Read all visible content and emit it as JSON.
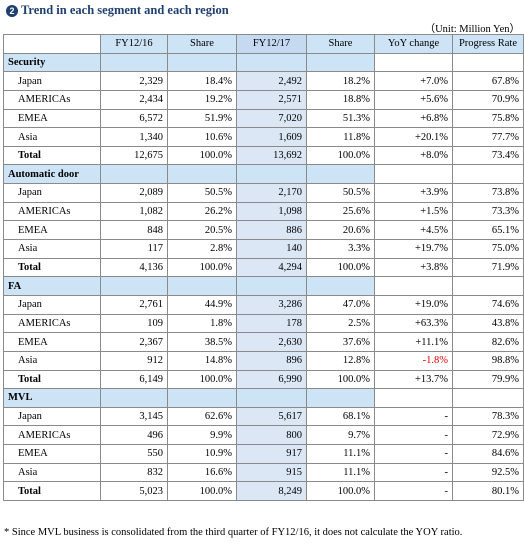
{
  "title": "Trend in each segment and each region",
  "title_number": "2",
  "unit_note": "（Unit: Million Yen）",
  "columns": [
    "",
    "FY12/16",
    "Share",
    "FY12/17",
    "Share",
    "YoY change",
    "Progress Rate"
  ],
  "segments": [
    {
      "name": "Security",
      "rows": [
        {
          "region": "Japan",
          "fy16": "2,329",
          "share16": "18.4%",
          "fy17": "2,492",
          "share17": "18.2%",
          "yoy": "+7.0%",
          "progress": "67.8%"
        },
        {
          "region": "AMERICAs",
          "fy16": "2,434",
          "share16": "19.2%",
          "fy17": "2,571",
          "share17": "18.8%",
          "yoy": "+5.6%",
          "progress": "70.9%"
        },
        {
          "region": "EMEA",
          "fy16": "6,572",
          "share16": "51.9%",
          "fy17": "7,020",
          "share17": "51.3%",
          "yoy": "+6.8%",
          "progress": "75.8%"
        },
        {
          "region": "Asia",
          "fy16": "1,340",
          "share16": "10.6%",
          "fy17": "1,609",
          "share17": "11.8%",
          "yoy": "+20.1%",
          "progress": "77.7%"
        }
      ],
      "total": {
        "region": "Total",
        "fy16": "12,675",
        "share16": "100.0%",
        "fy17": "13,692",
        "share17": "100.0%",
        "yoy": "+8.0%",
        "progress": "73.4%"
      }
    },
    {
      "name": "Automatic door",
      "rows": [
        {
          "region": "Japan",
          "fy16": "2,089",
          "share16": "50.5%",
          "fy17": "2,170",
          "share17": "50.5%",
          "yoy": "+3.9%",
          "progress": "73.8%"
        },
        {
          "region": "AMERICAs",
          "fy16": "1,082",
          "share16": "26.2%",
          "fy17": "1,098",
          "share17": "25.6%",
          "yoy": "+1.5%",
          "progress": "73.3%"
        },
        {
          "region": "EMEA",
          "fy16": "848",
          "share16": "20.5%",
          "fy17": "886",
          "share17": "20.6%",
          "yoy": "+4.5%",
          "progress": "65.1%"
        },
        {
          "region": "Asia",
          "fy16": "117",
          "share16": "2.8%",
          "fy17": "140",
          "share17": "3.3%",
          "yoy": "+19.7%",
          "progress": "75.0%"
        }
      ],
      "total": {
        "region": "Total",
        "fy16": "4,136",
        "share16": "100.0%",
        "fy17": "4,294",
        "share17": "100.0%",
        "yoy": "+3.8%",
        "progress": "71.9%"
      }
    },
    {
      "name": "FA",
      "rows": [
        {
          "region": "Japan",
          "fy16": "2,761",
          "share16": "44.9%",
          "fy17": "3,286",
          "share17": "47.0%",
          "yoy": "+19.0%",
          "progress": "74.6%"
        },
        {
          "region": "AMERICAs",
          "fy16": "109",
          "share16": "1.8%",
          "fy17": "178",
          "share17": "2.5%",
          "yoy": "+63.3%",
          "progress": "43.8%"
        },
        {
          "region": "EMEA",
          "fy16": "2,367",
          "share16": "38.5%",
          "fy17": "2,630",
          "share17": "37.6%",
          "yoy": "+11.1%",
          "progress": "82.6%"
        },
        {
          "region": "Asia",
          "fy16": "912",
          "share16": "14.8%",
          "fy17": "896",
          "share17": "12.8%",
          "yoy": "-1.8%",
          "progress": "98.8%",
          "negative": true
        }
      ],
      "total": {
        "region": "Total",
        "fy16": "6,149",
        "share16": "100.0%",
        "fy17": "6,990",
        "share17": "100.0%",
        "yoy": "+13.7%",
        "progress": "79.9%"
      }
    },
    {
      "name": "MVL",
      "rows": [
        {
          "region": "Japan",
          "fy16": "3,145",
          "share16": "62.6%",
          "fy17": "5,617",
          "share17": "68.1%",
          "yoy": "-",
          "progress": "78.3%"
        },
        {
          "region": "AMERICAs",
          "fy16": "496",
          "share16": "9.9%",
          "fy17": "800",
          "share17": "9.7%",
          "yoy": "-",
          "progress": "72.9%"
        },
        {
          "region": "EMEA",
          "fy16": "550",
          "share16": "10.9%",
          "fy17": "917",
          "share17": "11.1%",
          "yoy": "-",
          "progress": "84.6%"
        },
        {
          "region": "Asia",
          "fy16": "832",
          "share16": "16.6%",
          "fy17": "915",
          "share17": "11.1%",
          "yoy": "-",
          "progress": "92.5%"
        }
      ],
      "total": {
        "region": "Total",
        "fy16": "5,023",
        "share16": "100.0%",
        "fy17": "8,249",
        "share17": "100.0%",
        "yoy": "-",
        "progress": "80.1%"
      }
    }
  ],
  "footnote": "* Since MVL business is consolidated from the third quarter of FY12/16, it does not calculate the YOY ratio.",
  "colors": {
    "header_bg": "#cce4f6",
    "fy17_bg": "#dbe7f5",
    "title": "#1f3f6f",
    "negative": "#e00000"
  }
}
